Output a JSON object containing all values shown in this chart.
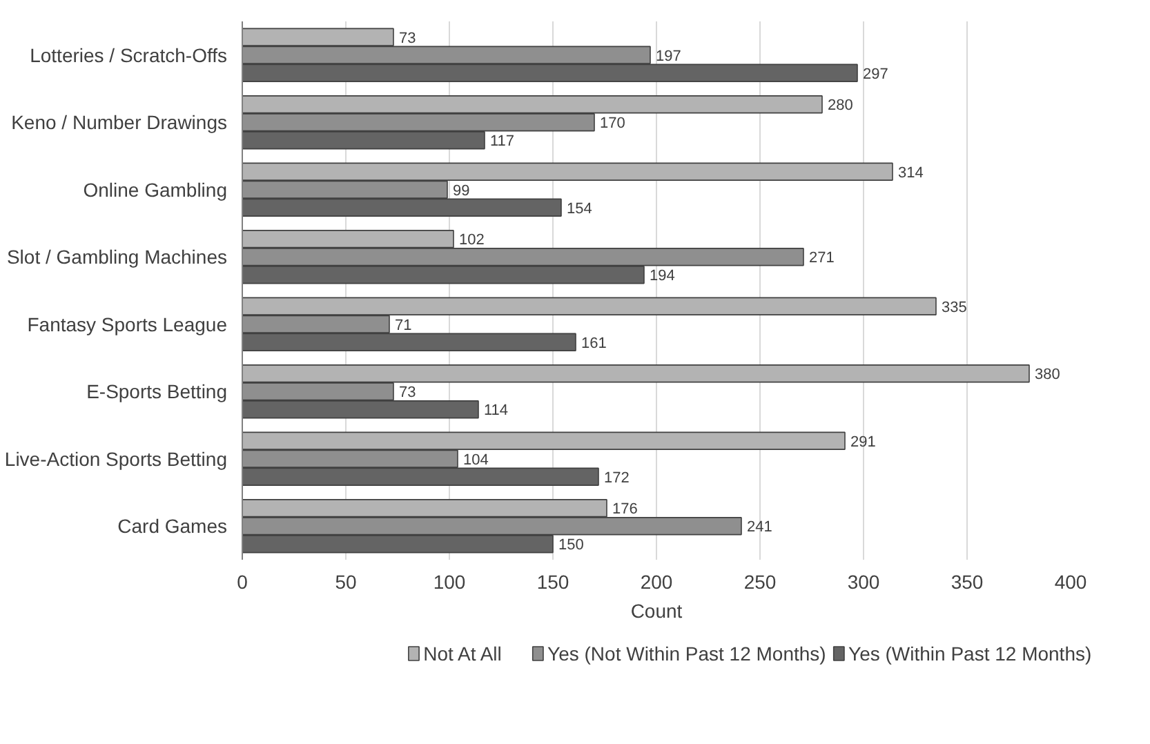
{
  "chart_data": {
    "type": "bar",
    "orientation": "horizontal",
    "xlabel": "Count",
    "categories": [
      "Lotteries / Scratch-Offs",
      "Keno / Number Drawings",
      "Online Gambling",
      "Slot / Gambling Machines",
      "Fantasy Sports League",
      "E-Sports Betting",
      "Live-Action Sports Betting",
      "Card Games"
    ],
    "series": [
      {
        "name": "Not At All",
        "color": "#b3b3b3",
        "values": [
          73,
          280,
          314,
          102,
          335,
          380,
          291,
          176
        ]
      },
      {
        "name": "Yes (Not Within Past 12 Months)",
        "color": "#8f8f8f",
        "values": [
          197,
          170,
          99,
          271,
          71,
          73,
          104,
          241
        ]
      },
      {
        "name": "Yes (Within Past 12 Months)",
        "color": "#646464",
        "values": [
          297,
          117,
          154,
          194,
          161,
          114,
          172,
          150
        ]
      }
    ],
    "xlim": [
      0,
      400
    ],
    "xticks": [
      0,
      50,
      100,
      150,
      200,
      250,
      300,
      350,
      400
    ],
    "grid": "x",
    "legend": "bottom",
    "data_labels": true
  }
}
